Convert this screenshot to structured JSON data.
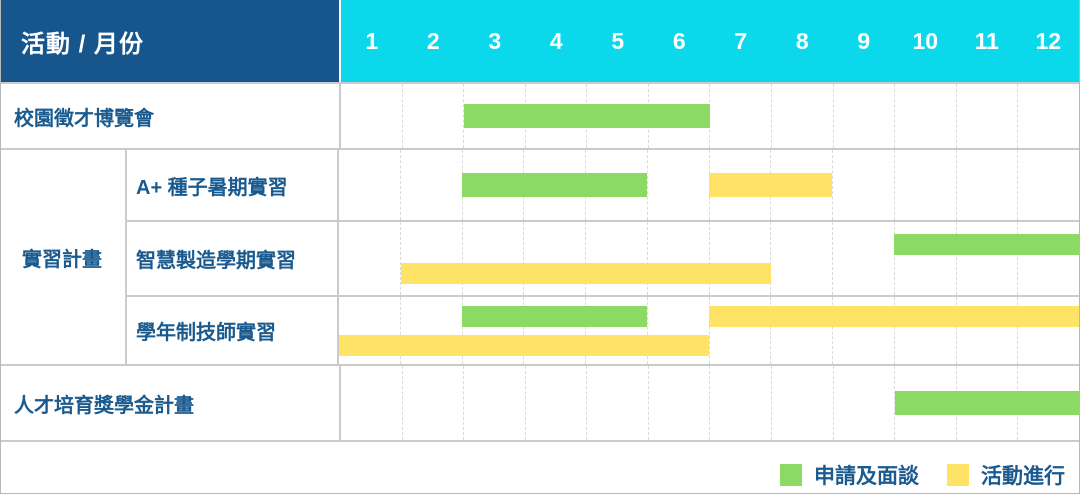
{
  "header": {
    "title": "活動 / 月份",
    "months": [
      "1",
      "2",
      "3",
      "4",
      "5",
      "6",
      "7",
      "8",
      "9",
      "10",
      "11",
      "12"
    ]
  },
  "group_label": "實習計畫",
  "colors": {
    "header_bg": "#16568C",
    "months_bg": "#0BD9EB",
    "label_text": "#1A5A8E",
    "separator": "#CBCBCB",
    "grid_dash": "#D9D9D9",
    "outer_border": "#B7B7B7",
    "apply_green": "#8CD964",
    "active_yellow": "#FEE366"
  },
  "chart_data": {
    "type": "gantt",
    "x_axis": {
      "label": "月份",
      "ticks": [
        1,
        2,
        3,
        4,
        5,
        6,
        7,
        8,
        9,
        10,
        11,
        12
      ]
    },
    "phases": {
      "apply": {
        "label": "申請及面談",
        "color": "#8CD964"
      },
      "active": {
        "label": "活動進行",
        "color": "#FEE366"
      }
    },
    "rows": [
      {
        "activity": "校園徵才博覽會",
        "group": null,
        "tracks": 1,
        "bars": [
          {
            "phase": "apply",
            "start": 3,
            "end": 6,
            "track": 0
          }
        ]
      },
      {
        "activity": "A+ 種子暑期實習",
        "group": "實習計畫",
        "tracks": 1,
        "bars": [
          {
            "phase": "apply",
            "start": 3,
            "end": 5,
            "track": 0
          },
          {
            "phase": "active",
            "start": 7,
            "end": 8,
            "track": 0
          }
        ]
      },
      {
        "activity": "智慧製造學期實習",
        "group": "實習計畫",
        "tracks": 2,
        "bars": [
          {
            "phase": "apply",
            "start": 10,
            "end": 12,
            "track": 0
          },
          {
            "phase": "active",
            "start": 2,
            "end": 7,
            "track": 1
          }
        ]
      },
      {
        "activity": "學年制技師實習",
        "group": "實習計畫",
        "tracks": 2,
        "bars": [
          {
            "phase": "apply",
            "start": 3,
            "end": 5,
            "track": 0
          },
          {
            "phase": "active",
            "start": 7,
            "end": 12,
            "track": 0
          },
          {
            "phase": "active",
            "start": 1,
            "end": 6,
            "track": 1
          }
        ]
      },
      {
        "activity": "人才培育獎學金計畫",
        "group": null,
        "tracks": 1,
        "bars": [
          {
            "phase": "apply",
            "start": 10,
            "end": 12,
            "track": 0
          }
        ]
      }
    ]
  }
}
